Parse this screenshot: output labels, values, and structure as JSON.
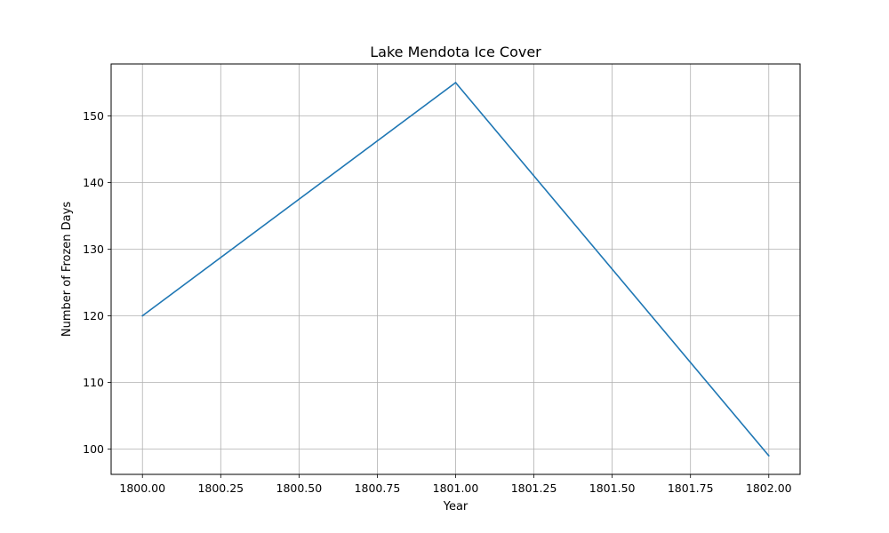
{
  "chart_data": {
    "type": "line",
    "title": "Lake Mendota Ice Cover",
    "xlabel": "Year",
    "ylabel": "Number of Frozen Days",
    "x": [
      1800,
      1801,
      1802
    ],
    "series": [
      {
        "values": [
          120,
          155,
          99
        ]
      }
    ],
    "xlim": [
      1799.9,
      1802.1
    ],
    "ylim": [
      96.2,
      157.8
    ],
    "xticks": [
      1800,
      1800.25,
      1800.5,
      1800.75,
      1801,
      1801.25,
      1801.5,
      1801.75,
      1802
    ],
    "xtick_labels": [
      "1800.00",
      "1800.25",
      "1800.50",
      "1800.75",
      "1801.00",
      "1801.25",
      "1801.50",
      "1801.75",
      "1802.00"
    ],
    "yticks": [
      100,
      110,
      120,
      130,
      140,
      150
    ],
    "ytick_labels": [
      "100",
      "110",
      "120",
      "130",
      "140",
      "150"
    ],
    "grid": true,
    "line_color": "#1f77b4",
    "grid_color": "#b0b0b0"
  }
}
